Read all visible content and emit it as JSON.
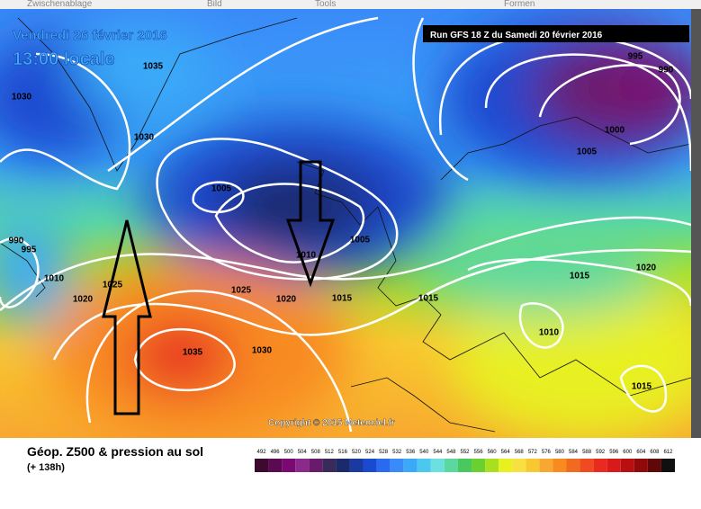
{
  "toolbar": [
    "Zwischenablage",
    "Bild",
    "Tools",
    "Formen"
  ],
  "map": {
    "date": "Vendredi 26 février 2016",
    "time": "13:00 locale",
    "run": "Run GFS 18 Z du Samedi 20 février 2016",
    "copyright": "Copyright © 2015 Meteociel.fr",
    "isobar_labels": [
      1035,
      1030,
      1030,
      1005,
      1005,
      1010,
      995,
      990,
      1000,
      1005,
      990,
      995,
      1010,
      1025,
      1020,
      1025,
      1020,
      1015,
      1015,
      1015,
      1020,
      1010,
      1035,
      1030,
      1015
    ]
  },
  "legend": {
    "title": "Géop. Z500 & pression au sol",
    "lead_time": "(+ 138h)",
    "scale": [
      {
        "label": 492,
        "color": "#3c0a2e"
      },
      {
        "label": 496,
        "color": "#5a0a50"
      },
      {
        "label": 500,
        "color": "#7a0a72"
      },
      {
        "label": 504,
        "color": "#8c2a8c"
      },
      {
        "label": 508,
        "color": "#6a1a6a"
      },
      {
        "label": 512,
        "color": "#3a2a5a"
      },
      {
        "label": 516,
        "color": "#1a2a6a"
      },
      {
        "label": 520,
        "color": "#1a3aa0"
      },
      {
        "label": 524,
        "color": "#1a4ad0"
      },
      {
        "label": 528,
        "color": "#2a6af0"
      },
      {
        "label": 532,
        "color": "#3a8af8"
      },
      {
        "label": 536,
        "color": "#3aaaf8"
      },
      {
        "label": 540,
        "color": "#4ac8f0"
      },
      {
        "label": 544,
        "color": "#6ae0e0"
      },
      {
        "label": 548,
        "color": "#5ad8a0"
      },
      {
        "label": 552,
        "color": "#4ac860"
      },
      {
        "label": 556,
        "color": "#6ad030"
      },
      {
        "label": 560,
        "color": "#a8e020"
      },
      {
        "label": 564,
        "color": "#e8f020"
      },
      {
        "label": 568,
        "color": "#f8e040"
      },
      {
        "label": 572,
        "color": "#f8c830"
      },
      {
        "label": 576,
        "color": "#f8a830"
      },
      {
        "label": 580,
        "color": "#f88a20"
      },
      {
        "label": 584,
        "color": "#f06a20"
      },
      {
        "label": 588,
        "color": "#f04a20"
      },
      {
        "label": 592,
        "color": "#e82a20"
      },
      {
        "label": 596,
        "color": "#d81a1a"
      },
      {
        "label": 600,
        "color": "#b81010"
      },
      {
        "label": 604,
        "color": "#900a0a"
      },
      {
        "label": 608,
        "color": "#600808"
      },
      {
        "label": 612,
        "color": "#101010"
      }
    ]
  }
}
